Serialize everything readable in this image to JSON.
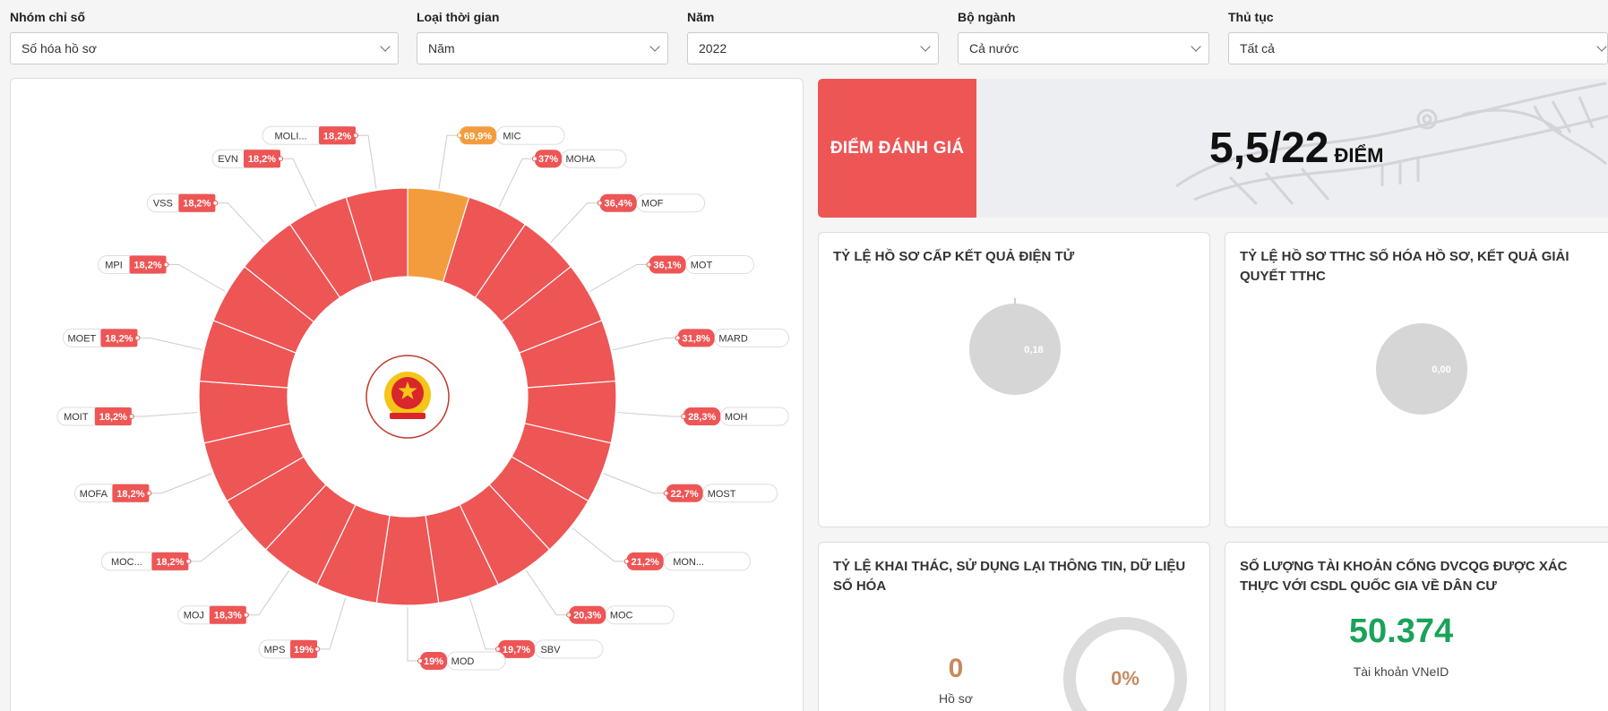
{
  "filters": [
    {
      "label": "Nhóm chỉ số",
      "value": "Số hóa hồ sơ"
    },
    {
      "label": "Loại thời gian",
      "value": "Năm"
    },
    {
      "label": "Năm",
      "value": "2022"
    },
    {
      "label": "Bộ ngành",
      "value": "Cả nước"
    },
    {
      "label": "Thủ tục",
      "value": "Tất cả"
    }
  ],
  "score": {
    "label": "ĐIỂM ĐÁNH GIÁ",
    "value": "5,5/22",
    "unit": "ĐIỂM"
  },
  "cards": {
    "electronic_result": {
      "title": "TỶ LỆ HỒ SƠ CẤP KẾT QUẢ ĐIỆN TỬ",
      "pie_label": "0,18"
    },
    "digitized_records": {
      "title": "TỶ LỆ HỒ SƠ TTHC SỐ HÓA HỒ SƠ, KẾT QUẢ GIẢI QUYẾT TTHC",
      "pie_label": "0,00"
    },
    "reuse": {
      "title": "TỶ LỆ KHAI THÁC, SỬ DỤNG LẠI THÔNG TIN, DỮ LIỆU SỐ HÓA",
      "count": "0",
      "count_label": "Hồ sơ",
      "percent": "0%"
    },
    "accounts": {
      "title": "SỐ LƯỢNG TÀI KHOẢN CỔNG DVCQG ĐƯỢC XÁC THỰC VỚI CSDL QUỐC GIA VỀ DÂN CƯ",
      "value": "50.374",
      "value_label": "Tài khoản VNeID"
    }
  },
  "colors": {
    "red": "#ee5555",
    "orange": "#f39c3d",
    "gray_pie": "#d6d6d6",
    "green": "#1aa35a"
  },
  "chart_data": {
    "type": "pie",
    "subtype": "donut",
    "series": [
      {
        "name": "MIC",
        "value": 69.9,
        "label": "69,9%"
      },
      {
        "name": "MOHA",
        "value": 37,
        "label": "37%"
      },
      {
        "name": "MOF",
        "value": 36.4,
        "label": "36,4%"
      },
      {
        "name": "MOT",
        "value": 36.1,
        "label": "36,1%"
      },
      {
        "name": "MARD",
        "value": 31.8,
        "label": "31,8%"
      },
      {
        "name": "MOH",
        "value": 28.3,
        "label": "28,3%"
      },
      {
        "name": "MOST",
        "value": 22.7,
        "label": "22,7%"
      },
      {
        "name": "MON...",
        "value": 21.2,
        "label": "21,2%"
      },
      {
        "name": "MOC",
        "value": 20.3,
        "label": "20,3%"
      },
      {
        "name": "SBV",
        "value": 19.7,
        "label": "19,7%"
      },
      {
        "name": "MOD",
        "value": 19,
        "label": "19%"
      },
      {
        "name": "MPS",
        "value": 19,
        "label": "19%"
      },
      {
        "name": "MOJ",
        "value": 18.3,
        "label": "18,3%"
      },
      {
        "name": "MOC...",
        "value": 18.2,
        "label": "18,2%"
      },
      {
        "name": "MOFA",
        "value": 18.2,
        "label": "18,2%"
      },
      {
        "name": "MOIT",
        "value": 18.2,
        "label": "18,2%"
      },
      {
        "name": "MOET",
        "value": 18.2,
        "label": "18,2%"
      },
      {
        "name": "MPI",
        "value": 18.2,
        "label": "18,2%"
      },
      {
        "name": "VSS",
        "value": 18.2,
        "label": "18,2%"
      },
      {
        "name": "EVN",
        "value": 18.2,
        "label": "18,2%"
      },
      {
        "name": "MOLI...",
        "value": 18.2,
        "label": "18,2%"
      }
    ],
    "highlight": "MIC"
  }
}
